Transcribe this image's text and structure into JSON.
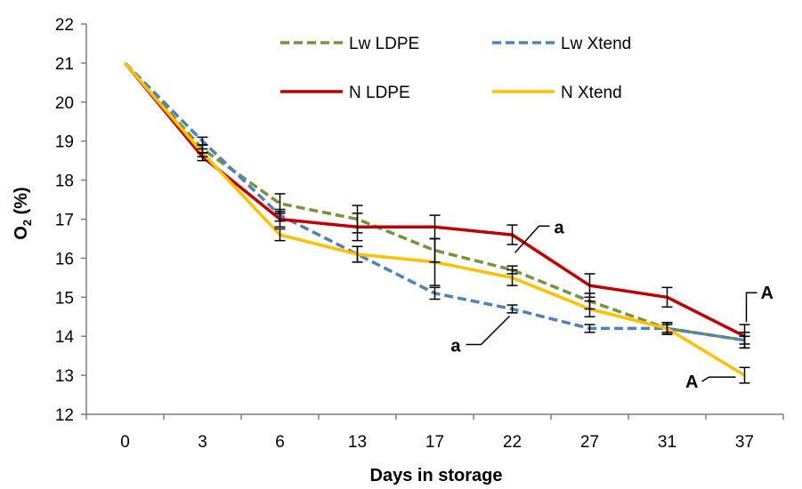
{
  "chart_data": {
    "type": "line",
    "title": "",
    "xlabel": "Days in storage",
    "ylabel": "O2 (%)",
    "ylabel_main": "O",
    "ylabel_sub": "2",
    "ylabel_rest": " (%)",
    "categories": [
      "0",
      "3",
      "6",
      "13",
      "17",
      "22",
      "27",
      "31",
      "37"
    ],
    "ylim": [
      12,
      22
    ],
    "yticks": [
      "12",
      "13",
      "14",
      "15",
      "16",
      "17",
      "18",
      "19",
      "20",
      "21",
      "22"
    ],
    "grid": false,
    "legend_position": "top",
    "series": [
      {
        "name": "Lw LDPE",
        "color": "#77933C",
        "dash": "dashed",
        "values": [
          21.0,
          18.8,
          17.4,
          17.0,
          16.2,
          15.7,
          14.9,
          14.2,
          13.9
        ],
        "errors": [
          0.0,
          0.1,
          0.25,
          0.35,
          0.3,
          0.1,
          0.2,
          0.15,
          0.2
        ]
      },
      {
        "name": "Lw Xtend",
        "color": "#4F81BD",
        "dash": "dashed",
        "values": [
          21.0,
          19.0,
          17.1,
          16.1,
          15.1,
          14.7,
          14.2,
          14.2,
          13.9
        ],
        "errors": [
          0.0,
          0.1,
          0.15,
          0.2,
          0.15,
          0.1,
          0.1,
          0.1,
          0.1
        ]
      },
      {
        "name": "N LDPE",
        "color": "#C00000",
        "dash": "solid",
        "values": [
          21.0,
          18.6,
          17.0,
          16.8,
          16.8,
          16.6,
          15.3,
          15.0,
          14.0
        ],
        "errors": [
          0.0,
          0.1,
          0.2,
          0.35,
          0.3,
          0.25,
          0.3,
          0.25,
          0.3
        ]
      },
      {
        "name": "N Xtend",
        "color": "#FFC000",
        "dash": "solid",
        "values": [
          21.0,
          18.7,
          16.6,
          16.1,
          15.9,
          15.5,
          14.7,
          14.2,
          13.0
        ],
        "errors": [
          0.0,
          0.1,
          0.15,
          0.2,
          0.6,
          0.2,
          0.2,
          0.15,
          0.2
        ]
      }
    ],
    "annotations": [
      {
        "text": "a",
        "category": "22",
        "y": 16.55
      },
      {
        "text": "a",
        "category": "22",
        "y": 14.7
      },
      {
        "text": "A",
        "category": "37",
        "y": 14.25
      },
      {
        "text": "A",
        "category": "37",
        "y": 13.0
      }
    ]
  }
}
